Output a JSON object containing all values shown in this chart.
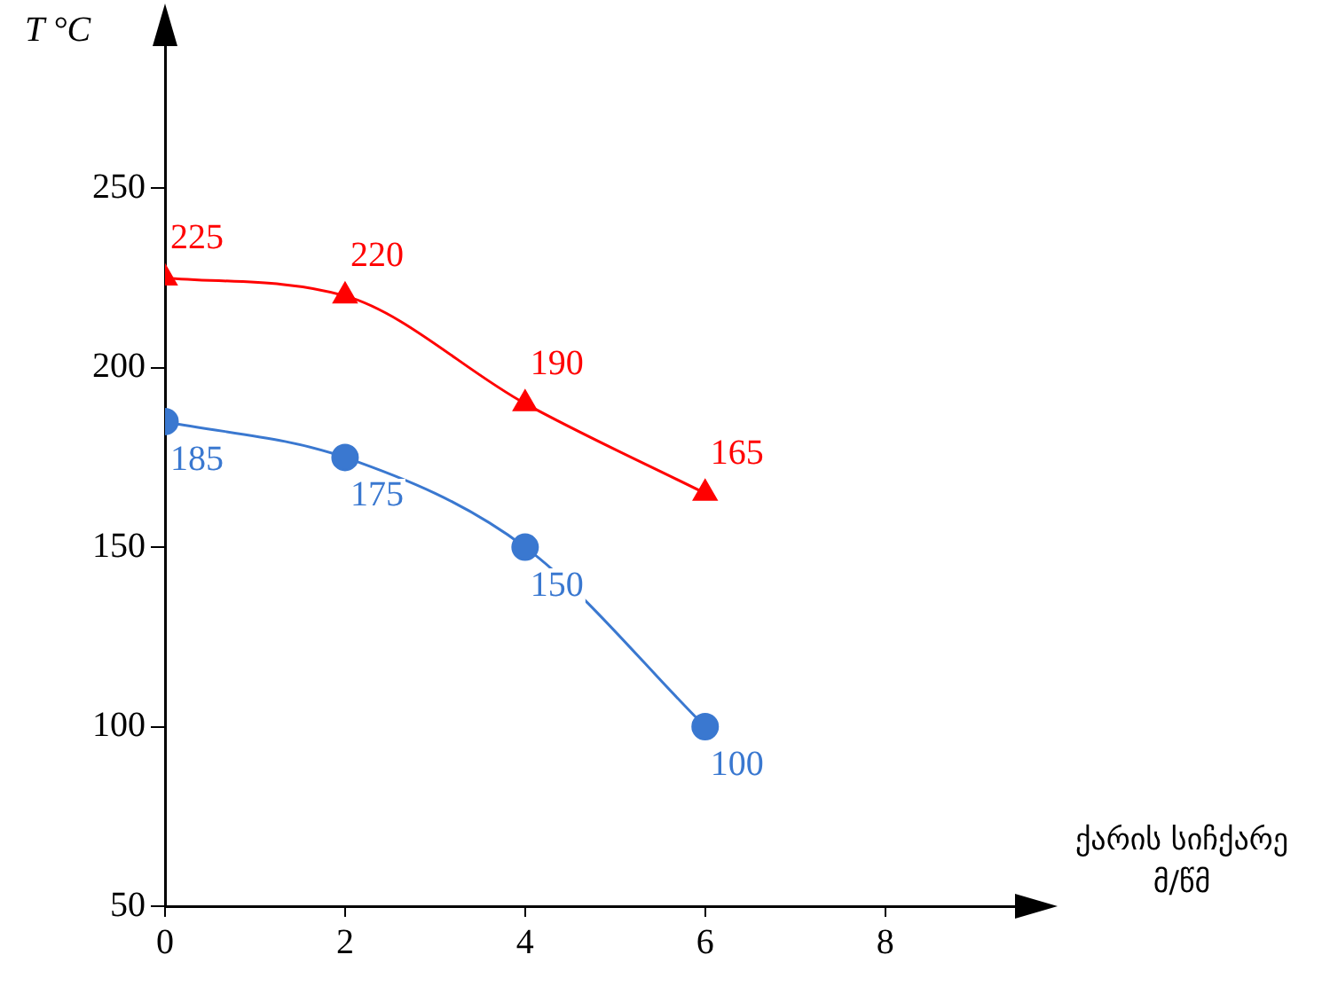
{
  "chart_data": {
    "type": "line",
    "xlabel": "ქარის სიჩქარე\nმ/წმ",
    "ylabel": "T °C",
    "x": [
      0,
      2,
      4,
      6
    ],
    "series": [
      {
        "color": "#ff0000",
        "values": [
          225,
          220,
          190,
          165
        ],
        "marker": "triangle"
      },
      {
        "color": "#3a78d0",
        "values": [
          185,
          175,
          150,
          100
        ],
        "marker": "circle"
      }
    ],
    "xlim": [
      0,
      9.6
    ],
    "xticks": [
      0,
      2,
      4,
      6,
      8
    ],
    "ylim": [
      50,
      295
    ],
    "yticks": [
      50,
      100,
      150,
      200,
      250
    ],
    "grid": false,
    "legend": false,
    "data_labels": true
  }
}
